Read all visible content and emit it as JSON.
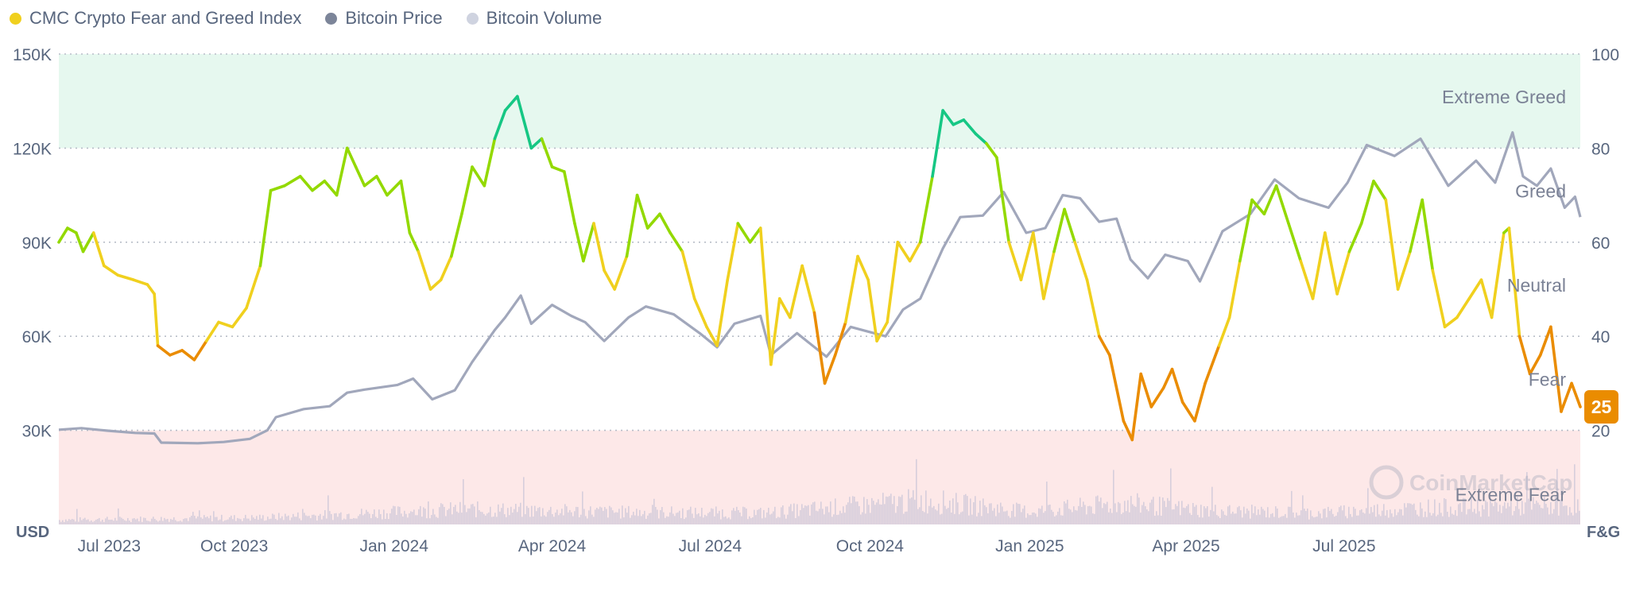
{
  "legend": {
    "items": [
      {
        "label": "CMC Crypto Fear and Greed Index",
        "color": "#f0d01e",
        "icon": "legend-dot-icon"
      },
      {
        "label": "Bitcoin Price",
        "color": "#7c8599",
        "icon": "legend-dot-icon"
      },
      {
        "label": "Bitcoin Volume",
        "color": "#cfd3e0",
        "icon": "legend-dot-icon"
      }
    ]
  },
  "colors": {
    "extreme_greed": "#16c784",
    "greed": "#93d900",
    "neutral": "#f0d01e",
    "fear": "#ea8c00",
    "extreme_fear": "#ea3943",
    "price_line": "#a1a7bb",
    "volume": "#d6cedc",
    "greed_band": "#e6f8ef",
    "fear_band": "#fde8e8",
    "axis_text": "#58667e",
    "grid": "#b8bdc8"
  },
  "watermark": "CoinMarketCap",
  "chart_data": {
    "type": "line",
    "title": "",
    "left_axis_label": "USD",
    "right_axis_label": "F&G",
    "left_ticks": [
      "150K",
      "120K",
      "90K",
      "60K",
      "30K"
    ],
    "right_ticks": [
      "100",
      "80",
      "60",
      "40",
      "20"
    ],
    "left_range": [
      0,
      150000
    ],
    "right_range": [
      0,
      100
    ],
    "x_range": [
      "2023-06-22",
      "2025-11-14"
    ],
    "x_tick_labels": [
      "Jul 2023",
      "Oct 2023",
      "Jan 2024",
      "Apr 2024",
      "Jul 2024",
      "Oct 2024",
      "Jan 2025",
      "Apr 2025",
      "Jul 2025"
    ],
    "x_tick_dates": [
      "2023-07-01",
      "2023-10-01",
      "2024-01-01",
      "2024-04-01",
      "2024-07-01",
      "2024-10-01",
      "2025-01-01",
      "2025-04-01",
      "2025-07-01"
    ],
    "zones": [
      {
        "name": "Extreme Greed",
        "min": 80,
        "max": 100
      },
      {
        "name": "Greed",
        "min": 60,
        "max": 80
      },
      {
        "name": "Neutral",
        "min": 40,
        "max": 60
      },
      {
        "name": "Fear",
        "min": 20,
        "max": 40
      },
      {
        "name": "Extreme Fear",
        "min": 0,
        "max": 20
      }
    ],
    "current_value": "25",
    "series": [
      {
        "name": "CMC Crypto Fear and Greed Index",
        "axis": "right",
        "points": [
          [
            "2023-06-22",
            60
          ],
          [
            "2023-06-27",
            63
          ],
          [
            "2023-07-02",
            62
          ],
          [
            "2023-07-06",
            58
          ],
          [
            "2023-07-12",
            62
          ],
          [
            "2023-07-18",
            55
          ],
          [
            "2023-07-26",
            53
          ],
          [
            "2023-08-04",
            52
          ],
          [
            "2023-08-12",
            51
          ],
          [
            "2023-08-16",
            49
          ],
          [
            "2023-08-18",
            38
          ],
          [
            "2023-08-25",
            36
          ],
          [
            "2023-09-01",
            37
          ],
          [
            "2023-09-08",
            35
          ],
          [
            "2023-09-15",
            39
          ],
          [
            "2023-09-22",
            43
          ],
          [
            "2023-09-30",
            42
          ],
          [
            "2023-10-08",
            46
          ],
          [
            "2023-10-16",
            55
          ],
          [
            "2023-10-22",
            71
          ],
          [
            "2023-10-30",
            72
          ],
          [
            "2023-11-08",
            74
          ],
          [
            "2023-11-15",
            71
          ],
          [
            "2023-11-22",
            73
          ],
          [
            "2023-11-29",
            70
          ],
          [
            "2023-12-05",
            80
          ],
          [
            "2023-12-10",
            76
          ],
          [
            "2023-12-15",
            72
          ],
          [
            "2023-12-22",
            74
          ],
          [
            "2023-12-28",
            70
          ],
          [
            "2024-01-05",
            73
          ],
          [
            "2024-01-10",
            62
          ],
          [
            "2024-01-15",
            58
          ],
          [
            "2024-01-22",
            50
          ],
          [
            "2024-01-28",
            52
          ],
          [
            "2024-02-03",
            57
          ],
          [
            "2024-02-09",
            66
          ],
          [
            "2024-02-15",
            76
          ],
          [
            "2024-02-22",
            72
          ],
          [
            "2024-02-28",
            82
          ],
          [
            "2024-03-05",
            88
          ],
          [
            "2024-03-12",
            91
          ],
          [
            "2024-03-20",
            80
          ],
          [
            "2024-03-26",
            82
          ],
          [
            "2024-04-01",
            76
          ],
          [
            "2024-04-08",
            75
          ],
          [
            "2024-04-14",
            64
          ],
          [
            "2024-04-19",
            56
          ],
          [
            "2024-04-25",
            64
          ],
          [
            "2024-05-01",
            54
          ],
          [
            "2024-05-07",
            50
          ],
          [
            "2024-05-14",
            57
          ],
          [
            "2024-05-20",
            70
          ],
          [
            "2024-05-26",
            63
          ],
          [
            "2024-06-02",
            66
          ],
          [
            "2024-06-08",
            62
          ],
          [
            "2024-06-15",
            58
          ],
          [
            "2024-06-22",
            48
          ],
          [
            "2024-06-29",
            42
          ],
          [
            "2024-07-05",
            38
          ],
          [
            "2024-07-11",
            52
          ],
          [
            "2024-07-17",
            64
          ],
          [
            "2024-07-24",
            60
          ],
          [
            "2024-07-30",
            63
          ],
          [
            "2024-08-05",
            34
          ],
          [
            "2024-08-10",
            48
          ],
          [
            "2024-08-16",
            44
          ],
          [
            "2024-08-23",
            55
          ],
          [
            "2024-08-30",
            45
          ],
          [
            "2024-09-05",
            30
          ],
          [
            "2024-09-11",
            36
          ],
          [
            "2024-09-17",
            43
          ],
          [
            "2024-09-24",
            57
          ],
          [
            "2024-09-30",
            52
          ],
          [
            "2024-10-05",
            39
          ],
          [
            "2024-10-11",
            43
          ],
          [
            "2024-10-17",
            60
          ],
          [
            "2024-10-24",
            56
          ],
          [
            "2024-10-30",
            60
          ],
          [
            "2024-11-06",
            74
          ],
          [
            "2024-11-12",
            88
          ],
          [
            "2024-11-18",
            85
          ],
          [
            "2024-11-24",
            86
          ],
          [
            "2024-12-01",
            83
          ],
          [
            "2024-12-07",
            81
          ],
          [
            "2024-12-13",
            78
          ],
          [
            "2024-12-20",
            60
          ],
          [
            "2024-12-27",
            52
          ],
          [
            "2025-01-03",
            62
          ],
          [
            "2025-01-09",
            48
          ],
          [
            "2025-01-15",
            58
          ],
          [
            "2025-01-21",
            67
          ],
          [
            "2025-01-27",
            60
          ],
          [
            "2025-02-03",
            52
          ],
          [
            "2025-02-10",
            40
          ],
          [
            "2025-02-16",
            36
          ],
          [
            "2025-02-24",
            22
          ],
          [
            "2025-03-01",
            18
          ],
          [
            "2025-03-06",
            32
          ],
          [
            "2025-03-12",
            25
          ],
          [
            "2025-03-19",
            29
          ],
          [
            "2025-03-24",
            33
          ],
          [
            "2025-03-30",
            26
          ],
          [
            "2025-04-06",
            22
          ],
          [
            "2025-04-12",
            30
          ],
          [
            "2025-04-20",
            38
          ],
          [
            "2025-04-26",
            44
          ],
          [
            "2025-05-02",
            56
          ],
          [
            "2025-05-09",
            69
          ],
          [
            "2025-05-16",
            66
          ],
          [
            "2025-05-23",
            72
          ],
          [
            "2025-05-30",
            64
          ],
          [
            "2025-06-06",
            56
          ],
          [
            "2025-06-13",
            48
          ],
          [
            "2025-06-20",
            62
          ],
          [
            "2025-06-27",
            49
          ],
          [
            "2025-07-04",
            58
          ],
          [
            "2025-07-11",
            64
          ],
          [
            "2025-07-18",
            73
          ],
          [
            "2025-07-25",
            69
          ],
          [
            "2025-08-01",
            50
          ],
          [
            "2025-08-08",
            58
          ],
          [
            "2025-08-15",
            69
          ],
          [
            "2025-08-21",
            54
          ],
          [
            "2025-08-28",
            42
          ],
          [
            "2025-09-04",
            44
          ],
          [
            "2025-09-11",
            48
          ],
          [
            "2025-09-18",
            52
          ],
          [
            "2025-09-24",
            44
          ],
          [
            "2025-10-01",
            62
          ],
          [
            "2025-10-04",
            63
          ],
          [
            "2025-10-10",
            40
          ],
          [
            "2025-10-16",
            32
          ],
          [
            "2025-10-22",
            36
          ],
          [
            "2025-10-28",
            42
          ],
          [
            "2025-11-03",
            24
          ],
          [
            "2025-11-09",
            30
          ],
          [
            "2025-11-14",
            25
          ]
        ]
      },
      {
        "name": "Bitcoin Price",
        "axis": "left",
        "points": [
          [
            "2023-06-22",
            30200
          ],
          [
            "2023-07-05",
            30700
          ],
          [
            "2023-07-20",
            29900
          ],
          [
            "2023-08-05",
            29200
          ],
          [
            "2023-08-16",
            29000
          ],
          [
            "2023-08-20",
            26100
          ],
          [
            "2023-09-10",
            25900
          ],
          [
            "2023-09-25",
            26300
          ],
          [
            "2023-10-10",
            27300
          ],
          [
            "2023-10-20",
            30000
          ],
          [
            "2023-10-25",
            34200
          ],
          [
            "2023-11-10",
            36800
          ],
          [
            "2023-11-25",
            37700
          ],
          [
            "2023-12-05",
            42000
          ],
          [
            "2023-12-15",
            43000
          ],
          [
            "2024-01-03",
            44500
          ],
          [
            "2024-01-12",
            46500
          ],
          [
            "2024-01-23",
            39900
          ],
          [
            "2024-02-05",
            42800
          ],
          [
            "2024-02-15",
            51800
          ],
          [
            "2024-02-28",
            62000
          ],
          [
            "2024-03-05",
            66000
          ],
          [
            "2024-03-14",
            73000
          ],
          [
            "2024-03-20",
            64000
          ],
          [
            "2024-04-01",
            70000
          ],
          [
            "2024-04-12",
            66500
          ],
          [
            "2024-04-20",
            64500
          ],
          [
            "2024-05-01",
            58500
          ],
          [
            "2024-05-15",
            66000
          ],
          [
            "2024-05-25",
            69500
          ],
          [
            "2024-06-10",
            67000
          ],
          [
            "2024-06-25",
            61000
          ],
          [
            "2024-07-05",
            56500
          ],
          [
            "2024-07-15",
            64000
          ],
          [
            "2024-07-30",
            66500
          ],
          [
            "2024-08-05",
            54000
          ],
          [
            "2024-08-20",
            61000
          ],
          [
            "2024-09-06",
            53500
          ],
          [
            "2024-09-20",
            63000
          ],
          [
            "2024-10-10",
            60000
          ],
          [
            "2024-10-20",
            68500
          ],
          [
            "2024-10-30",
            72000
          ],
          [
            "2024-11-12",
            88000
          ],
          [
            "2024-11-22",
            98000
          ],
          [
            "2024-12-05",
            98500
          ],
          [
            "2024-12-17",
            106000
          ],
          [
            "2024-12-30",
            93000
          ],
          [
            "2025-01-10",
            94500
          ],
          [
            "2025-01-20",
            105000
          ],
          [
            "2025-01-30",
            104000
          ],
          [
            "2025-02-10",
            96500
          ],
          [
            "2025-02-20",
            97500
          ],
          [
            "2025-02-28",
            84500
          ],
          [
            "2025-03-10",
            78500
          ],
          [
            "2025-03-20",
            86000
          ],
          [
            "2025-04-02",
            84000
          ],
          [
            "2025-04-09",
            77500
          ],
          [
            "2025-04-22",
            93500
          ],
          [
            "2025-05-08",
            99000
          ],
          [
            "2025-05-22",
            110000
          ],
          [
            "2025-06-05",
            104000
          ],
          [
            "2025-06-22",
            101000
          ],
          [
            "2025-07-03",
            109000
          ],
          [
            "2025-07-14",
            121000
          ],
          [
            "2025-07-30",
            117500
          ],
          [
            "2025-08-14",
            123000
          ],
          [
            "2025-08-30",
            108000
          ],
          [
            "2025-09-15",
            116000
          ],
          [
            "2025-09-26",
            109000
          ],
          [
            "2025-10-06",
            125000
          ],
          [
            "2025-10-12",
            111000
          ],
          [
            "2025-10-20",
            108000
          ],
          [
            "2025-10-28",
            113500
          ],
          [
            "2025-11-05",
            101000
          ],
          [
            "2025-11-11",
            104500
          ],
          [
            "2025-11-14",
            98000
          ]
        ]
      },
      {
        "name": "Bitcoin Volume",
        "axis": "left",
        "relative": true,
        "segments": [
          [
            "2023-06-22",
            0.06
          ],
          [
            "2023-10-15",
            0.09
          ],
          [
            "2024-02-10",
            0.2
          ],
          [
            "2024-05-20",
            0.16
          ],
          [
            "2024-08-01",
            0.15
          ],
          [
            "2024-11-01",
            0.32
          ],
          [
            "2024-12-31",
            0.17
          ],
          [
            "2025-02-25",
            0.28
          ],
          [
            "2025-04-15",
            0.18
          ],
          [
            "2025-06-15",
            0.15
          ],
          [
            "2025-08-15",
            0.22
          ],
          [
            "2025-11-14",
            0.25
          ]
        ]
      }
    ]
  }
}
